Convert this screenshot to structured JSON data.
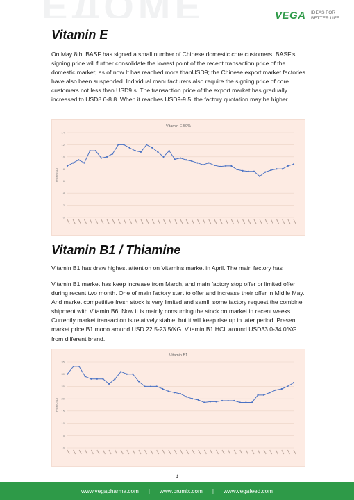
{
  "header": {
    "brand": "VEGA",
    "tagline_line1": "IDEAS FOR",
    "tagline_line2": "BETTER LIFE"
  },
  "sections": [
    {
      "title": "Vitamin E",
      "paragraphs": [
        "On May 8th, BASF has signed a small number of Chinese domestic core customers. BASF’s signing price will further consolidate the lowest point of the recent transaction price of the domestic market; as of now It has reached more thanUSD9; the Chinese export market factories have also been suspended. Individual manufacturers also require the signing price of core customers not less than USD9 s. The transaction price of the export market has gradually increased to USD8.6-8.8. When it reaches USD9-9.5, the factory quotation may be higher."
      ]
    },
    {
      "title": "Vitamin B1 / Thiamine",
      "paragraphs": [
        "Vitamin B1 has draw highest attention on Vitamins market in April. The main factory has",
        "Vitamin B1 market has keep increase from March, and main factory stop offer or limited offer during recent two month. One of main factory start to offer and increase their offer in Midlle May. And market competitive fresh stock is very limited and samll, some factory request the combine shipment with Vitamin B6. Now it is mainly consuming the stock on market in recent weeks. Currently market transaction is relatively stable, but it will keep rise up in later period.  Present market price B1 mono around USD 22.5-23.5/KG. Vitamin B1 HCL around USD33.0-34.0/KG from different brand."
      ]
    }
  ],
  "chart_data": [
    {
      "type": "line",
      "title": "Vitamin E 50%",
      "ylabel": "Price(USD)",
      "xlabel": "",
      "ylim": [
        0,
        14
      ],
      "yticks": [
        0,
        2,
        4,
        6,
        8,
        10,
        12,
        14
      ],
      "grid": true,
      "color": "#4a72c4",
      "values": [
        8.5,
        9.0,
        9.5,
        9.0,
        11.0,
        11.0,
        9.8,
        10.0,
        10.5,
        12.0,
        12.0,
        11.5,
        11.0,
        10.8,
        12.0,
        11.5,
        10.8,
        10.0,
        11.0,
        9.6,
        9.8,
        9.5,
        9.3,
        9.0,
        8.7,
        9.0,
        8.6,
        8.4,
        8.5,
        8.5,
        7.9,
        7.7,
        7.6,
        7.6,
        6.8,
        7.5,
        7.8,
        8.0,
        8.0,
        8.5,
        8.8
      ]
    },
    {
      "type": "line",
      "title": "Vitamin B1",
      "ylabel": "Price(USD)",
      "xlabel": "",
      "ylim": [
        0,
        35
      ],
      "yticks": [
        0,
        5,
        10,
        15,
        20,
        25,
        30,
        35
      ],
      "grid": true,
      "color": "#4a72c4",
      "values": [
        30,
        33,
        33,
        29,
        28,
        28,
        28,
        26,
        28,
        31,
        30,
        30,
        27,
        25,
        25,
        25,
        24,
        23,
        22.5,
        22,
        20.8,
        20,
        19.5,
        18.5,
        18.8,
        18.8,
        19.2,
        19.2,
        19.2,
        18.5,
        18.5,
        18.5,
        21.5,
        21.5,
        22.5,
        23.5,
        24,
        25,
        26.5
      ]
    }
  ],
  "page_number": "4",
  "footer": {
    "links": [
      "www.vegapharma.com",
      "www.prumix.com",
      "www.vegafeed.com"
    ],
    "separator": "|"
  }
}
